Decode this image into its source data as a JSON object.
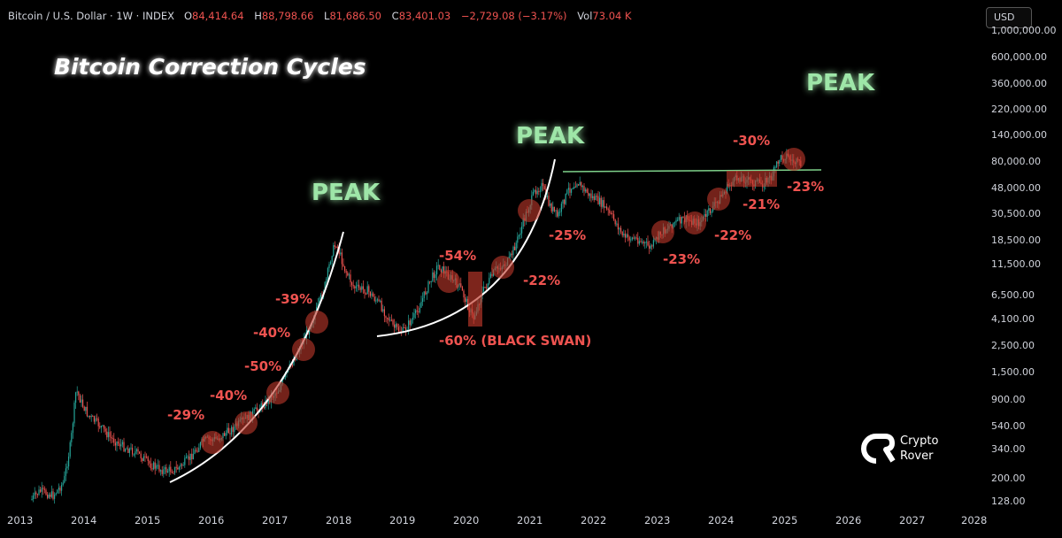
{
  "header": {
    "symbol": "Bitcoin / U.S. Dollar · 1W · INDEX",
    "open_label": "O",
    "open": "84,414.64",
    "high_label": "H",
    "high": "88,798.66",
    "low_label": "L",
    "low": "81,686.50",
    "close_label": "C",
    "close": "83,401.03",
    "change": "−2,729.08 (−3.17%)",
    "vol_label": "Vol",
    "vol": "73.04 K"
  },
  "currency": "USD",
  "title": "Bitcoin Correction Cycles",
  "colors": {
    "peak": "#9ee6a8",
    "correction": "#ef5350",
    "up_candle": "#26a69a",
    "down_candle": "#ef5350",
    "title_glow": "#ff2a2a"
  },
  "price_axis": [
    "1,000,000.00",
    "600,000.00",
    "360,000.00",
    "220,000.00",
    "140,000.00",
    "80,000.00",
    "48,000.00",
    "30,500.00",
    "18,500.00",
    "11,500.00",
    "6,500.00",
    "4,100.00",
    "2,500.00",
    "1,500.00",
    "900.00",
    "540.00",
    "340.00",
    "200.00",
    "128.00"
  ],
  "time_axis": [
    "2013",
    "2014",
    "2015",
    "2016",
    "2017",
    "2018",
    "2019",
    "2020",
    "2021",
    "2022",
    "2023",
    "2024",
    "2025",
    "2026",
    "2027",
    "2028"
  ],
  "peaks": [
    "PEAK",
    "PEAK",
    "PEAK"
  ],
  "corrections": [
    "-29%",
    "-40%",
    "-50%",
    "-40%",
    "-39%",
    "-54%",
    "-60% (BLACK SWAN)",
    "-22%",
    "-25%",
    "-23%",
    "-22%",
    "-21%",
    "-30%",
    "-23%"
  ],
  "brand": {
    "line1": "Crypto",
    "line2": "Rover"
  }
}
